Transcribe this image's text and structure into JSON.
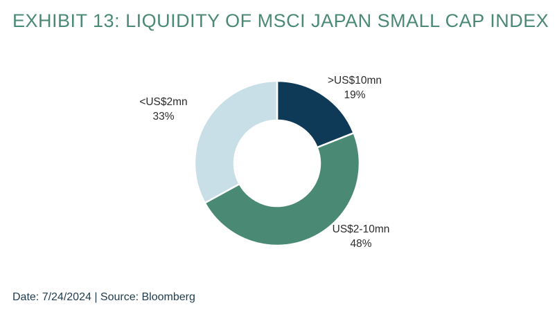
{
  "title": "EXHIBIT 13: LIQUIDITY OF MSCI JAPAN SMALL CAP INDEX",
  "footer": "Date: 7/24/2024 | Source: Bloomberg",
  "chart_data": {
    "type": "pie",
    "donut": true,
    "start_angle_deg": 0,
    "direction": "clockwise",
    "slices": [
      {
        "label": ">US$10mn",
        "value_label": "19%",
        "value": 19,
        "color": "#0e3a57"
      },
      {
        "label": "US$2-10mn",
        "value_label": "48%",
        "value": 48,
        "color": "#4a8a75"
      },
      {
        "label": "<US$2mn",
        "value_label": "33%",
        "value": 33,
        "color": "#c8dfe8"
      }
    ]
  }
}
